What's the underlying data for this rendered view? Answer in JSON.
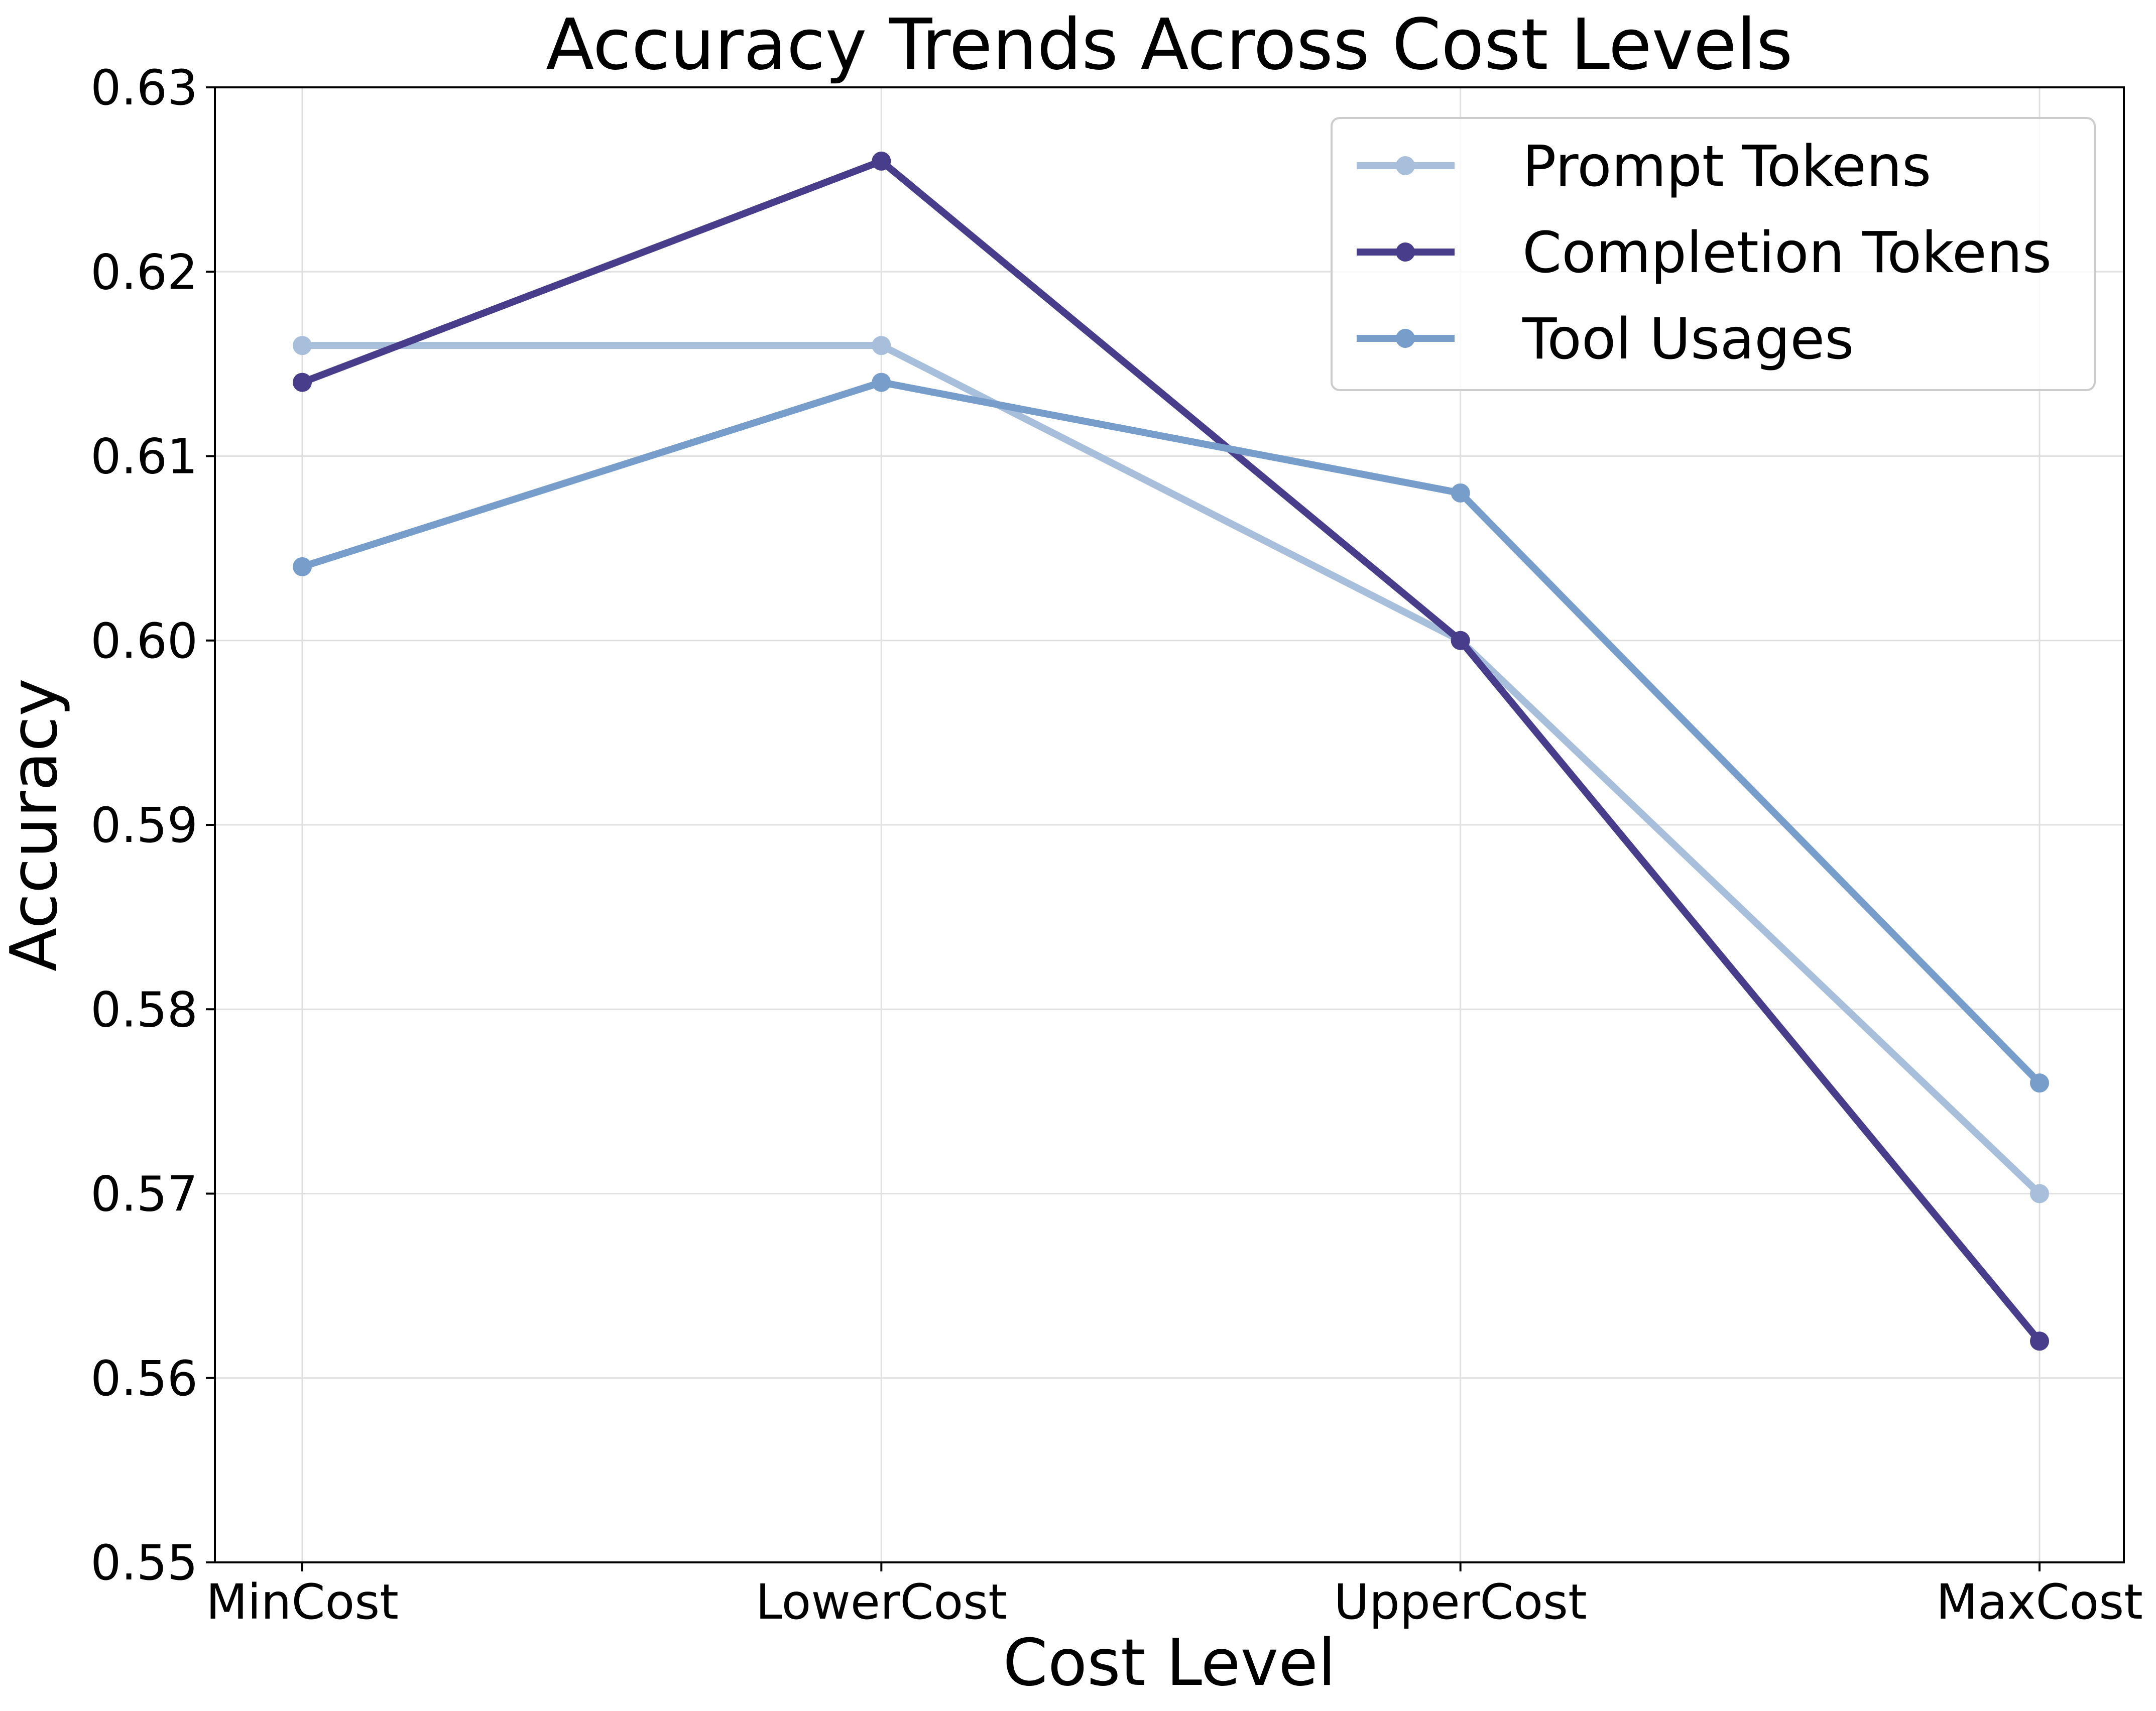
{
  "chart_data": {
    "type": "line",
    "title": "Accuracy Trends Across Cost Levels",
    "xlabel": "Cost Level",
    "ylabel": "Accuracy",
    "categories": [
      "MinCost",
      "LowerCost",
      "UpperCost",
      "MaxCost"
    ],
    "ylim": [
      0.55,
      0.63
    ],
    "yticks": [
      "0.55",
      "0.56",
      "0.57",
      "0.58",
      "0.59",
      "0.60",
      "0.61",
      "0.62",
      "0.63"
    ],
    "grid": true,
    "legend_position": "top-right",
    "series": [
      {
        "name": "Prompt Tokens",
        "color": "#a8bfdb",
        "values": [
          0.616,
          0.616,
          0.6,
          0.57
        ]
      },
      {
        "name": "Completion Tokens",
        "color": "#483d8b",
        "values": [
          0.614,
          0.626,
          0.6,
          0.562
        ]
      },
      {
        "name": "Tool Usages",
        "color": "#779ecb",
        "values": [
          0.604,
          0.614,
          0.608,
          0.576
        ]
      }
    ]
  }
}
